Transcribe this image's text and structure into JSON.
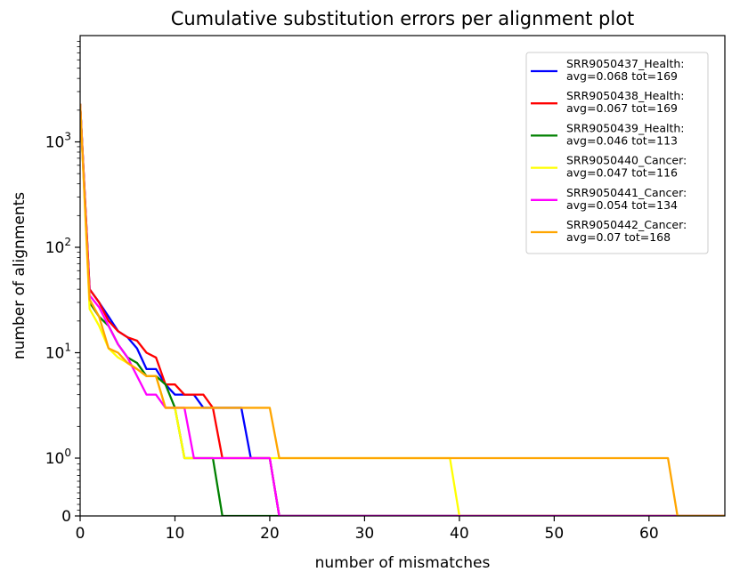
{
  "chart_data": {
    "type": "line",
    "title": "Cumulative substitution errors per alignment plot",
    "xlabel": "number of mismatches",
    "ylabel": "number of alignments",
    "xlim": [
      0,
      68
    ],
    "y_scale": "symlog",
    "x_ticks": [
      0,
      10,
      20,
      30,
      40,
      50,
      60
    ],
    "x_tick_labels": [
      "0",
      "10",
      "20",
      "30",
      "40",
      "50",
      "60"
    ],
    "y_ticks": [
      {
        "value": 0,
        "base": "0",
        "exp": ""
      },
      {
        "value": 1,
        "base": "10",
        "exp": "0"
      },
      {
        "value": 10,
        "base": "10",
        "exp": "1"
      },
      {
        "value": 100,
        "base": "10",
        "exp": "2"
      },
      {
        "value": 1000,
        "base": "10",
        "exp": "3"
      }
    ],
    "grid": false,
    "legend_position": "top-right",
    "series": [
      {
        "name": "SRR9050437_Health:",
        "stats": "avg=0.068 tot=169",
        "color": "#0000ff",
        "points": [
          [
            0,
            2300
          ],
          [
            1,
            40
          ],
          [
            2,
            30
          ],
          [
            3,
            22
          ],
          [
            4,
            16
          ],
          [
            5,
            14
          ],
          [
            6,
            11
          ],
          [
            7,
            7
          ],
          [
            8,
            7
          ],
          [
            9,
            5
          ],
          [
            10,
            4
          ],
          [
            11,
            4
          ],
          [
            12,
            4
          ],
          [
            13,
            3
          ],
          [
            14,
            3
          ],
          [
            15,
            3
          ],
          [
            16,
            3
          ],
          [
            17,
            3
          ],
          [
            18,
            1
          ],
          [
            19,
            1
          ],
          [
            20,
            1
          ],
          [
            21,
            0
          ],
          [
            68,
            0
          ]
        ]
      },
      {
        "name": "SRR9050438_Health:",
        "stats": "avg=0.067 tot=169",
        "color": "#ff0000",
        "points": [
          [
            0,
            2300
          ],
          [
            1,
            40
          ],
          [
            2,
            30
          ],
          [
            3,
            20
          ],
          [
            4,
            16
          ],
          [
            5,
            14
          ],
          [
            6,
            13
          ],
          [
            7,
            10
          ],
          [
            8,
            9
          ],
          [
            9,
            5
          ],
          [
            10,
            5
          ],
          [
            11,
            4
          ],
          [
            12,
            4
          ],
          [
            13,
            4
          ],
          [
            14,
            3
          ],
          [
            15,
            1
          ],
          [
            16,
            1
          ],
          [
            17,
            1
          ],
          [
            18,
            1
          ],
          [
            19,
            1
          ],
          [
            20,
            1
          ],
          [
            21,
            0
          ],
          [
            68,
            0
          ]
        ]
      },
      {
        "name": "SRR9050439_Health:",
        "stats": "avg=0.046 tot=113",
        "color": "#008000",
        "points": [
          [
            0,
            2300
          ],
          [
            1,
            30
          ],
          [
            2,
            22
          ],
          [
            3,
            18
          ],
          [
            4,
            12
          ],
          [
            5,
            9
          ],
          [
            6,
            8
          ],
          [
            7,
            6
          ],
          [
            8,
            6
          ],
          [
            9,
            5
          ],
          [
            10,
            3
          ],
          [
            11,
            1
          ],
          [
            12,
            1
          ],
          [
            13,
            1
          ],
          [
            14,
            1
          ],
          [
            15,
            0
          ],
          [
            68,
            0
          ]
        ]
      },
      {
        "name": "SRR9050440_Cancer:",
        "stats": "avg=0.047 tot=116",
        "color": "#ffff00",
        "points": [
          [
            0,
            2300
          ],
          [
            1,
            26
          ],
          [
            2,
            18
          ],
          [
            3,
            11
          ],
          [
            4,
            9
          ],
          [
            5,
            8
          ],
          [
            6,
            7
          ],
          [
            7,
            6
          ],
          [
            8,
            6
          ],
          [
            9,
            3
          ],
          [
            10,
            3
          ],
          [
            11,
            1
          ],
          [
            12,
            1
          ],
          [
            13,
            1
          ],
          [
            14,
            1
          ],
          [
            15,
            1
          ],
          [
            16,
            1
          ],
          [
            17,
            1
          ],
          [
            18,
            1
          ],
          [
            19,
            1
          ],
          [
            20,
            1
          ],
          [
            21,
            1
          ],
          [
            22,
            1
          ],
          [
            23,
            1
          ],
          [
            24,
            1
          ],
          [
            25,
            1
          ],
          [
            26,
            1
          ],
          [
            27,
            1
          ],
          [
            28,
            1
          ],
          [
            29,
            1
          ],
          [
            30,
            1
          ],
          [
            31,
            1
          ],
          [
            32,
            1
          ],
          [
            33,
            1
          ],
          [
            34,
            1
          ],
          [
            35,
            1
          ],
          [
            36,
            1
          ],
          [
            37,
            1
          ],
          [
            38,
            1
          ],
          [
            39,
            1
          ],
          [
            40,
            0
          ],
          [
            68,
            0
          ]
        ]
      },
      {
        "name": "SRR9050441_Cancer:",
        "stats": "avg=0.054 tot=134",
        "color": "#ff00ff",
        "points": [
          [
            0,
            2300
          ],
          [
            1,
            35
          ],
          [
            2,
            27
          ],
          [
            3,
            18
          ],
          [
            4,
            12
          ],
          [
            5,
            9
          ],
          [
            6,
            6
          ],
          [
            7,
            4
          ],
          [
            8,
            4
          ],
          [
            9,
            3
          ],
          [
            10,
            3
          ],
          [
            11,
            3
          ],
          [
            12,
            1
          ],
          [
            13,
            1
          ],
          [
            14,
            1
          ],
          [
            15,
            1
          ],
          [
            16,
            1
          ],
          [
            17,
            1
          ],
          [
            18,
            1
          ],
          [
            19,
            1
          ],
          [
            20,
            1
          ],
          [
            21,
            0
          ],
          [
            68,
            0
          ]
        ]
      },
      {
        "name": "SRR9050442_Cancer:",
        "stats": "avg=0.07 tot=168",
        "color": "#ffa500",
        "points": [
          [
            0,
            2300
          ],
          [
            1,
            32
          ],
          [
            2,
            22
          ],
          [
            3,
            11
          ],
          [
            4,
            10
          ],
          [
            5,
            8
          ],
          [
            6,
            7
          ],
          [
            7,
            6
          ],
          [
            8,
            6
          ],
          [
            9,
            3
          ],
          [
            10,
            3
          ],
          [
            11,
            3
          ],
          [
            12,
            3
          ],
          [
            13,
            3
          ],
          [
            14,
            3
          ],
          [
            15,
            3
          ],
          [
            16,
            3
          ],
          [
            17,
            3
          ],
          [
            18,
            3
          ],
          [
            19,
            3
          ],
          [
            20,
            3
          ],
          [
            21,
            1
          ],
          [
            22,
            1
          ],
          [
            23,
            1
          ],
          [
            24,
            1
          ],
          [
            25,
            1
          ],
          [
            26,
            1
          ],
          [
            27,
            1
          ],
          [
            28,
            1
          ],
          [
            29,
            1
          ],
          [
            30,
            1
          ],
          [
            31,
            1
          ],
          [
            32,
            1
          ],
          [
            33,
            1
          ],
          [
            34,
            1
          ],
          [
            35,
            1
          ],
          [
            36,
            1
          ],
          [
            37,
            1
          ],
          [
            38,
            1
          ],
          [
            39,
            1
          ],
          [
            40,
            1
          ],
          [
            41,
            1
          ],
          [
            42,
            1
          ],
          [
            43,
            1
          ],
          [
            44,
            1
          ],
          [
            45,
            1
          ],
          [
            46,
            1
          ],
          [
            47,
            1
          ],
          [
            48,
            1
          ],
          [
            49,
            1
          ],
          [
            50,
            1
          ],
          [
            51,
            1
          ],
          [
            52,
            1
          ],
          [
            53,
            1
          ],
          [
            54,
            1
          ],
          [
            55,
            1
          ],
          [
            56,
            1
          ],
          [
            57,
            1
          ],
          [
            58,
            1
          ],
          [
            59,
            1
          ],
          [
            60,
            1
          ],
          [
            61,
            1
          ],
          [
            62,
            1
          ],
          [
            63,
            0
          ],
          [
            68,
            0
          ]
        ]
      }
    ]
  }
}
